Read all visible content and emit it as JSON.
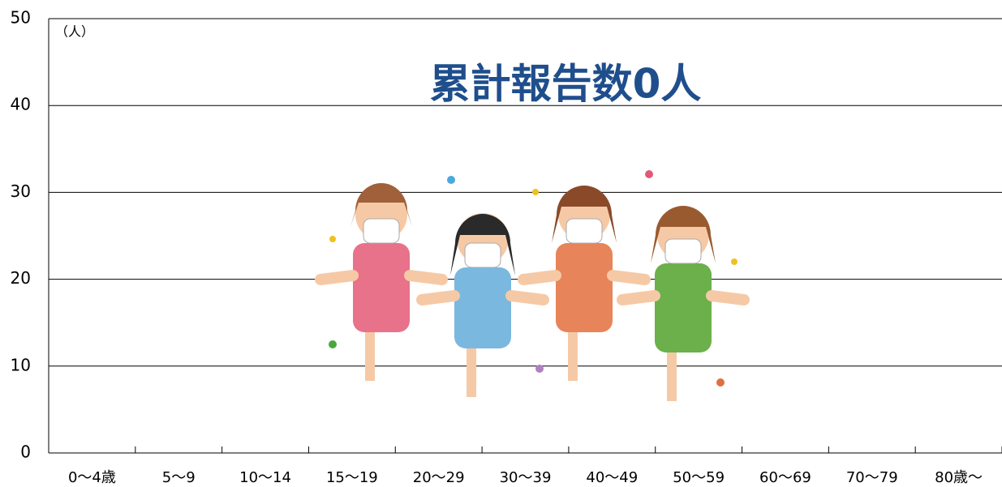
{
  "chart_data": {
    "type": "bar",
    "annotation": "累計報告数0人",
    "y_label": "（人）",
    "categories": [
      "0〜4歳",
      "5〜9",
      "10〜14",
      "15〜19",
      "20〜29",
      "30〜39",
      "40〜49",
      "50〜59",
      "60〜69",
      "70〜79",
      "80歳〜"
    ],
    "values": [
      0,
      0,
      0,
      0,
      0,
      0,
      0,
      0,
      0,
      0,
      0
    ],
    "color": "#4472c4",
    "ylim": [
      0,
      50
    ],
    "yticks": [
      0,
      10,
      20,
      30,
      40,
      50
    ],
    "grid": true
  }
}
